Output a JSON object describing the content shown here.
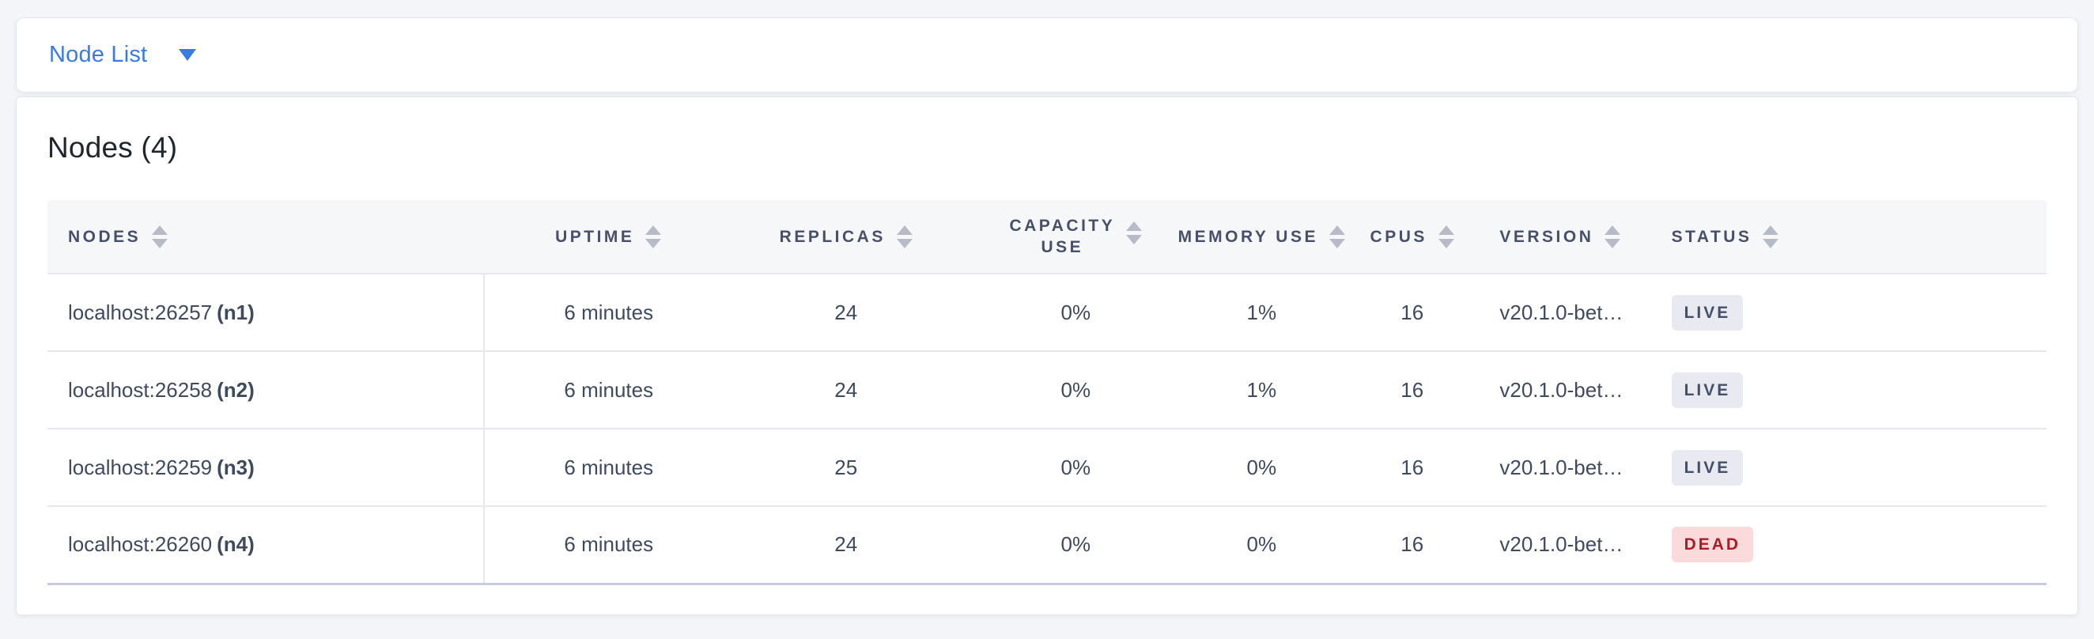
{
  "toolbar": {
    "dropdown_label": "Node List"
  },
  "icons": {
    "dropdown_caret": "caret-down-icon",
    "column_sort": "sort-arrows-icon"
  },
  "page": {
    "title": "Nodes (4)"
  },
  "colors": {
    "accent_blue": "#3a7be2",
    "live_badge_bg": "#e9eaf1",
    "live_badge_text": "#44506a",
    "dead_badge_bg": "#fadada",
    "dead_badge_text": "#a61e26"
  },
  "table": {
    "columns": [
      {
        "id": "nodes",
        "label": "NODES",
        "align": "left"
      },
      {
        "id": "uptime",
        "label": "UPTIME",
        "align": "center"
      },
      {
        "id": "replicas",
        "label": "REPLICAS",
        "align": "center"
      },
      {
        "id": "capacity_use",
        "label": "CAPACITY\nUSE",
        "align": "center"
      },
      {
        "id": "memory_use",
        "label": "MEMORY USE",
        "align": "center"
      },
      {
        "id": "cpus",
        "label": "CPUS",
        "align": "center"
      },
      {
        "id": "version",
        "label": "VERSION",
        "align": "left"
      },
      {
        "id": "status",
        "label": "STATUS",
        "align": "left"
      }
    ],
    "rows": [
      {
        "node_address": "localhost:26257",
        "node_id": "(n1)",
        "uptime": "6 minutes",
        "replicas": "24",
        "capacity_use": "0%",
        "memory_use": "1%",
        "cpus": "16",
        "version": "v20.1.0-bet…",
        "status": "LIVE"
      },
      {
        "node_address": "localhost:26258",
        "node_id": "(n2)",
        "uptime": "6 minutes",
        "replicas": "24",
        "capacity_use": "0%",
        "memory_use": "1%",
        "cpus": "16",
        "version": "v20.1.0-bet…",
        "status": "LIVE"
      },
      {
        "node_address": "localhost:26259",
        "node_id": "(n3)",
        "uptime": "6 minutes",
        "replicas": "25",
        "capacity_use": "0%",
        "memory_use": "0%",
        "cpus": "16",
        "version": "v20.1.0-bet…",
        "status": "LIVE"
      },
      {
        "node_address": "localhost:26260",
        "node_id": "(n4)",
        "uptime": "6 minutes",
        "replicas": "24",
        "capacity_use": "0%",
        "memory_use": "0%",
        "cpus": "16",
        "version": "v20.1.0-bet…",
        "status": "DEAD"
      }
    ]
  }
}
